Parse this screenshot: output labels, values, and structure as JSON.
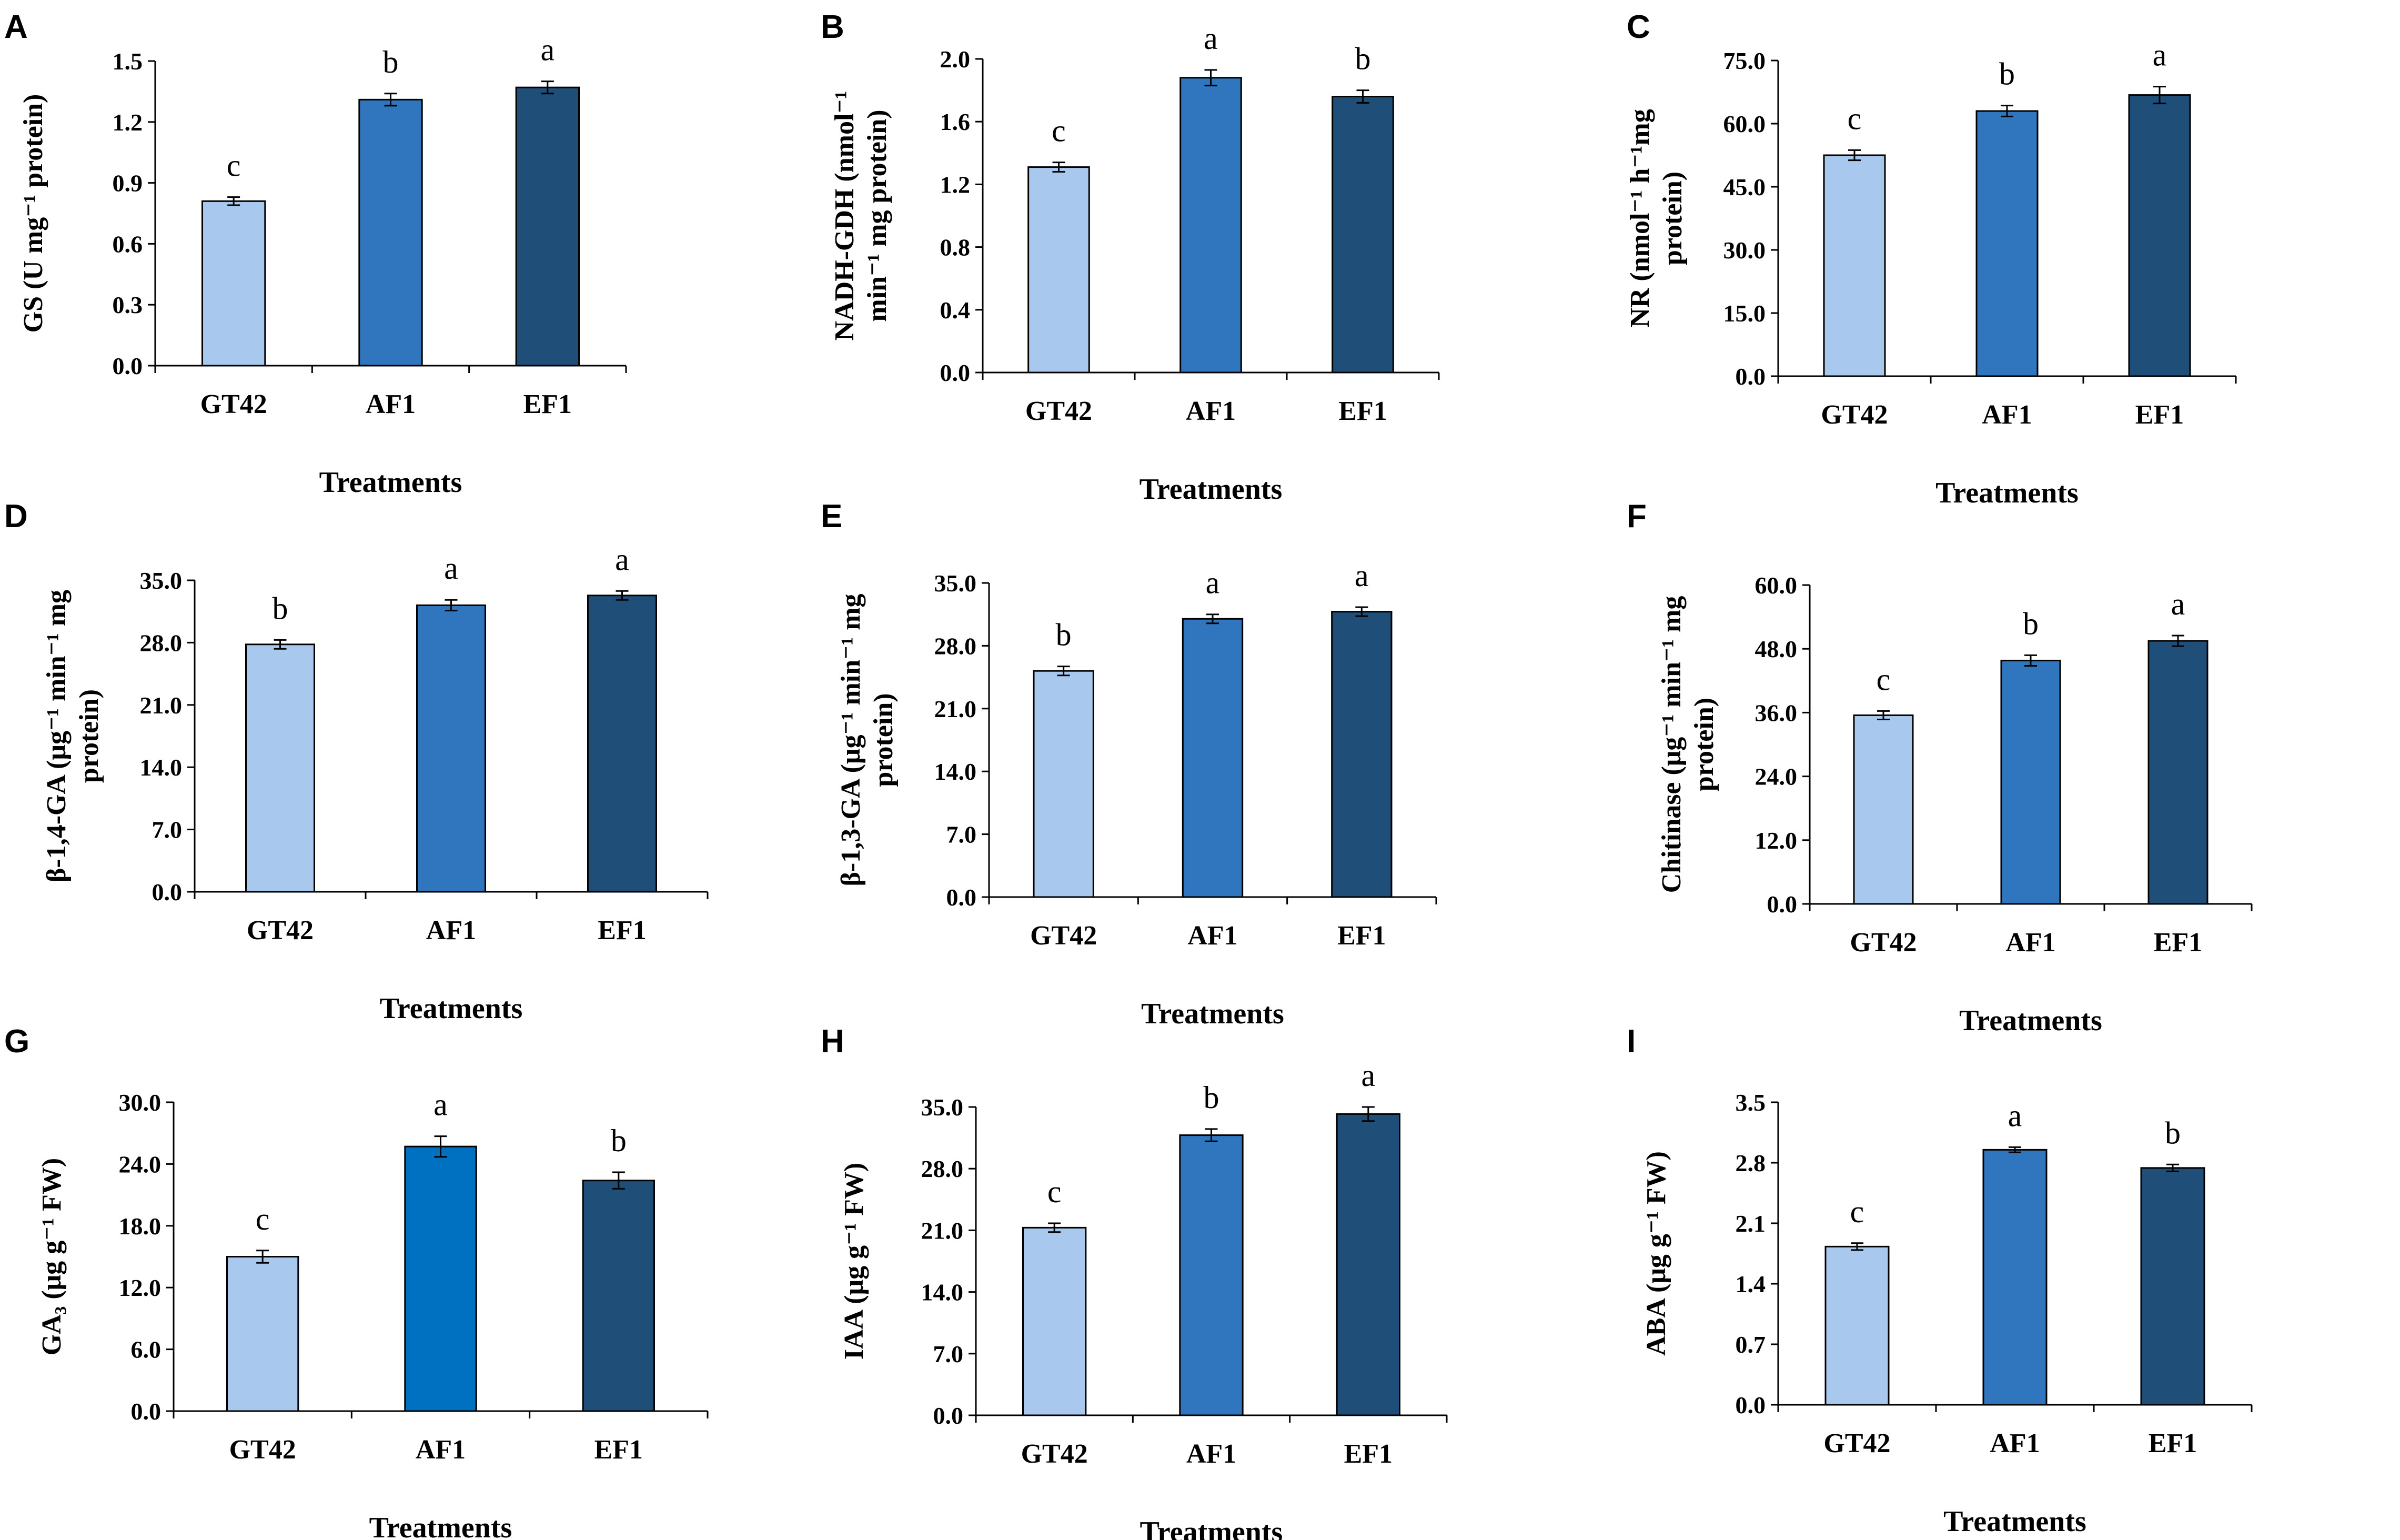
{
  "colors": {
    "GT42": "#a9c8ee",
    "AF1": "#2f76bf",
    "EF1": "#1f4e79",
    "AF1_panel_G": "#0070c0"
  },
  "chart_data": [
    {
      "type": "bar",
      "panel": "A",
      "categories": [
        "GT42",
        "AF1",
        "EF1"
      ],
      "values": [
        0.81,
        1.31,
        1.37
      ],
      "errors": [
        0.02,
        0.03,
        0.03
      ],
      "significance": [
        "c",
        "b",
        "a"
      ],
      "ylim": [
        0,
        1.5
      ],
      "yticks": [
        "0.0",
        "0.3",
        "0.6",
        "0.9",
        "1.2",
        "1.5"
      ],
      "ylabel_lines": [
        "GS (U mg⁻¹ protein)"
      ],
      "xlabel": "Treatments"
    },
    {
      "type": "bar",
      "panel": "B",
      "categories": [
        "GT42",
        "AF1",
        "EF1"
      ],
      "values": [
        1.31,
        1.88,
        1.76
      ],
      "errors": [
        0.03,
        0.05,
        0.04
      ],
      "significance": [
        "c",
        "a",
        "b"
      ],
      "ylim": [
        0,
        2.0
      ],
      "yticks": [
        "0.0",
        "0.4",
        "0.8",
        "1.2",
        "1.6",
        "2.0"
      ],
      "ylabel_lines": [
        "NADH-GDH (nmol⁻¹",
        "min⁻¹ mg protein)"
      ],
      "xlabel": "Treatments"
    },
    {
      "type": "bar",
      "panel": "C",
      "categories": [
        "GT42",
        "AF1",
        "EF1"
      ],
      "values": [
        52.5,
        63.0,
        66.8
      ],
      "errors": [
        1.2,
        1.3,
        2.0
      ],
      "significance": [
        "c",
        "b",
        "a"
      ],
      "ylim": [
        0,
        75
      ],
      "yticks": [
        "0.0",
        "15.0",
        "30.0",
        "45.0",
        "60.0",
        "75.0"
      ],
      "ylabel_lines": [
        "NR (nmol⁻¹ h⁻¹mg",
        "protein)"
      ],
      "xlabel": "Treatments"
    },
    {
      "type": "bar",
      "panel": "D",
      "categories": [
        "GT42",
        "AF1",
        "EF1"
      ],
      "values": [
        27.8,
        32.2,
        33.3
      ],
      "errors": [
        0.5,
        0.6,
        0.5
      ],
      "significance": [
        "b",
        "a",
        "a"
      ],
      "ylim": [
        0,
        35
      ],
      "yticks": [
        "0.0",
        "7.0",
        "14.0",
        "21.0",
        "28.0",
        "35.0"
      ],
      "ylabel_lines": [
        "β-1,4-GA (μg⁻¹ min⁻¹ mg",
        "protein)"
      ],
      "xlabel": "Treatments"
    },
    {
      "type": "bar",
      "panel": "E",
      "categories": [
        "GT42",
        "AF1",
        "EF1"
      ],
      "values": [
        25.2,
        31.0,
        31.8
      ],
      "errors": [
        0.5,
        0.5,
        0.5
      ],
      "significance": [
        "b",
        "a",
        "a"
      ],
      "ylim": [
        0,
        35
      ],
      "yticks": [
        "0.0",
        "7.0",
        "14.0",
        "21.0",
        "28.0",
        "35.0"
      ],
      "ylabel_lines": [
        "β-1,3-GA (μg⁻¹ min⁻¹ mg",
        "protein)"
      ],
      "xlabel": "Treatments"
    },
    {
      "type": "bar",
      "panel": "F",
      "categories": [
        "GT42",
        "AF1",
        "EF1"
      ],
      "values": [
        35.5,
        45.8,
        49.5
      ],
      "errors": [
        0.8,
        1.0,
        1.0
      ],
      "significance": [
        "c",
        "b",
        "a"
      ],
      "ylim": [
        0,
        60
      ],
      "yticks": [
        "0.0",
        "12.0",
        "24.0",
        "36.0",
        "48.0",
        "60.0"
      ],
      "ylabel_lines": [
        "Chitinase (μg⁻¹ min⁻¹ mg",
        "protein)"
      ],
      "xlabel": "Treatments"
    },
    {
      "type": "bar",
      "panel": "G",
      "categories": [
        "GT42",
        "AF1",
        "EF1"
      ],
      "values": [
        15.0,
        25.7,
        22.4
      ],
      "errors": [
        0.6,
        1.0,
        0.8
      ],
      "significance": [
        "c",
        "a",
        "b"
      ],
      "ylim": [
        0,
        30
      ],
      "yticks": [
        "0.0",
        "6.0",
        "12.0",
        "18.0",
        "24.0",
        "30.0"
      ],
      "ylabel_lines": [
        "GA₃ (μg g⁻¹ FW)"
      ],
      "xlabel": "Treatments"
    },
    {
      "type": "bar",
      "panel": "H",
      "categories": [
        "GT42",
        "AF1",
        "EF1"
      ],
      "values": [
        21.3,
        31.8,
        34.2
      ],
      "errors": [
        0.5,
        0.7,
        0.8
      ],
      "significance": [
        "c",
        "b",
        "a"
      ],
      "ylim": [
        0,
        35
      ],
      "yticks": [
        "0.0",
        "7.0",
        "14.0",
        "21.0",
        "28.0",
        "35.0"
      ],
      "ylabel_lines": [
        "IAA (μg g⁻¹ FW)"
      ],
      "xlabel": "Treatments"
    },
    {
      "type": "bar",
      "panel": "I",
      "categories": [
        "GT42",
        "AF1",
        "EF1"
      ],
      "values": [
        1.83,
        2.95,
        2.74
      ],
      "errors": [
        0.04,
        0.03,
        0.04
      ],
      "significance": [
        "c",
        "a",
        "b"
      ],
      "ylim": [
        0,
        3.5
      ],
      "yticks": [
        "0.0",
        "0.7",
        "1.4",
        "2.1",
        "2.8",
        "3.5"
      ],
      "ylabel_lines": [
        "ABA (μg g⁻¹ FW)"
      ],
      "xlabel": "Treatments"
    }
  ]
}
